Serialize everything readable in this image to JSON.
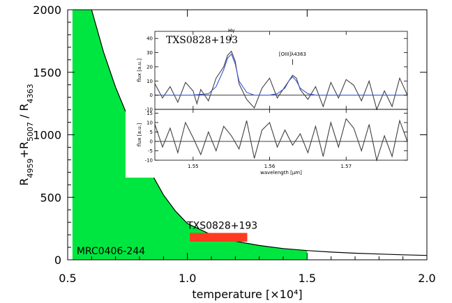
{
  "chart_data": [
    {
      "type": "area",
      "xlabel": "temperature [×10⁴]",
      "ylabel_parts": [
        "R",
        "4959",
        "+R",
        "5007",
        " / R",
        "4363"
      ],
      "xlim": [
        0.5,
        2.0
      ],
      "ylim": [
        0,
        2000
      ],
      "xticks": [
        0.5,
        1.0,
        1.5,
        2.0
      ],
      "yticks": [
        0,
        500,
        1000,
        1500,
        2000
      ],
      "tick_labels_x": [
        "0.5",
        "1.0",
        "1.5",
        "2.0"
      ],
      "tick_labels_y": [
        "0",
        "500",
        "1000",
        "1500",
        "2000"
      ],
      "curve": {
        "x": [
          0.6,
          0.65,
          0.7,
          0.75,
          0.8,
          0.85,
          0.9,
          0.95,
          1.0,
          1.1,
          1.2,
          1.3,
          1.4,
          1.5,
          1.6,
          1.7,
          1.8,
          1.9,
          2.0
        ],
        "y": [
          2000,
          1660,
          1380,
          1150,
          880,
          690,
          520,
          390,
          290,
          200,
          148,
          115,
          90,
          74,
          62,
          53,
          46,
          40,
          35
        ]
      },
      "green_region": {
        "label": "MRC0406-244",
        "xmin": 0.52,
        "xmax": 1.5,
        "color": "#00e640"
      },
      "red_box": {
        "label": "TXS0828+193",
        "x": [
          1.01,
          1.25
        ],
        "y": [
          145,
          215
        ],
        "color": "#ff3b1f"
      }
    },
    {
      "type": "line",
      "title": "TXS0828+193",
      "ylabel": "flux [a.u.]",
      "xlabel": "wavelength [μm]",
      "xlim": [
        1.545,
        1.578
      ],
      "xtick_labels": [
        "1.55",
        "1.56",
        "1.57"
      ],
      "xticks": [
        1.55,
        1.56,
        1.57
      ],
      "top_panel": {
        "ylim": [
          -10,
          45
        ],
        "yticks": [
          -10,
          0,
          10,
          20,
          30,
          40
        ],
        "ytick_labels": [
          "-10",
          "0",
          "10",
          "20",
          "30",
          "40"
        ],
        "annotations": [
          "Hγ",
          "[OIII]λ4363"
        ],
        "series": [
          {
            "color": "#404040",
            "x": [
              1.545,
              1.546,
              1.547,
              1.548,
              1.549,
              1.55,
              1.5505,
              1.551,
              1.552,
              1.553,
              1.554,
              1.5545,
              1.555,
              1.5555,
              1.556,
              1.557,
              1.558,
              1.559,
              1.56,
              1.561,
              1.562,
              1.5625,
              1.563,
              1.5635,
              1.564,
              1.565,
              1.566,
              1.567,
              1.568,
              1.569,
              1.57,
              1.571,
              1.572,
              1.573,
              1.574,
              1.575,
              1.576,
              1.577,
              1.578
            ],
            "y": [
              8,
              -2,
              6,
              -5,
              9,
              3,
              -6,
              4,
              -4,
              12,
              20,
              28,
              31,
              24,
              8,
              -3,
              -9,
              5,
              12,
              -2,
              6,
              10,
              14,
              12,
              4,
              -3,
              6,
              -8,
              9,
              -2,
              11,
              7,
              -4,
              10,
              -10,
              3,
              -8,
              12,
              0
            ]
          },
          {
            "color": "#3a56d6",
            "x": [
              1.545,
              1.55,
              1.552,
              1.553,
              1.554,
              1.5545,
              1.555,
              1.5555,
              1.556,
              1.557,
              1.558,
              1.56,
              1.561,
              1.562,
              1.5625,
              1.563,
              1.5635,
              1.564,
              1.565,
              1.566,
              1.578
            ],
            "y": [
              0,
              0,
              1,
              6,
              18,
              26,
              29,
              22,
              10,
              2,
              0,
              0,
              1,
              5,
              10,
              13,
              10,
              5,
              1,
              0,
              0
            ]
          }
        ]
      },
      "bottom_panel": {
        "ylim": [
          -10,
          17
        ],
        "yticks": [
          -10,
          -5,
          0,
          5,
          10,
          15
        ],
        "ytick_labels": [
          "-10",
          "-5",
          "0",
          "5",
          "10",
          "15"
        ],
        "series": [
          {
            "color": "#404040",
            "x": [
              1.545,
              1.546,
              1.547,
              1.548,
              1.549,
              1.55,
              1.551,
              1.552,
              1.553,
              1.554,
              1.555,
              1.556,
              1.557,
              1.558,
              1.559,
              1.56,
              1.561,
              1.562,
              1.563,
              1.564,
              1.565,
              1.566,
              1.567,
              1.568,
              1.569,
              1.57,
              1.571,
              1.572,
              1.573,
              1.574,
              1.575,
              1.576,
              1.577,
              1.578
            ],
            "y": [
              9,
              -3,
              7,
              -6,
              10,
              2,
              -7,
              5,
              -5,
              8,
              3,
              -4,
              11,
              -9,
              6,
              10,
              -3,
              6,
              -2,
              4,
              -6,
              8,
              -8,
              10,
              -3,
              12,
              7,
              -5,
              9,
              -10,
              3,
              -8,
              11,
              0
            ]
          }
        ]
      }
    }
  ]
}
